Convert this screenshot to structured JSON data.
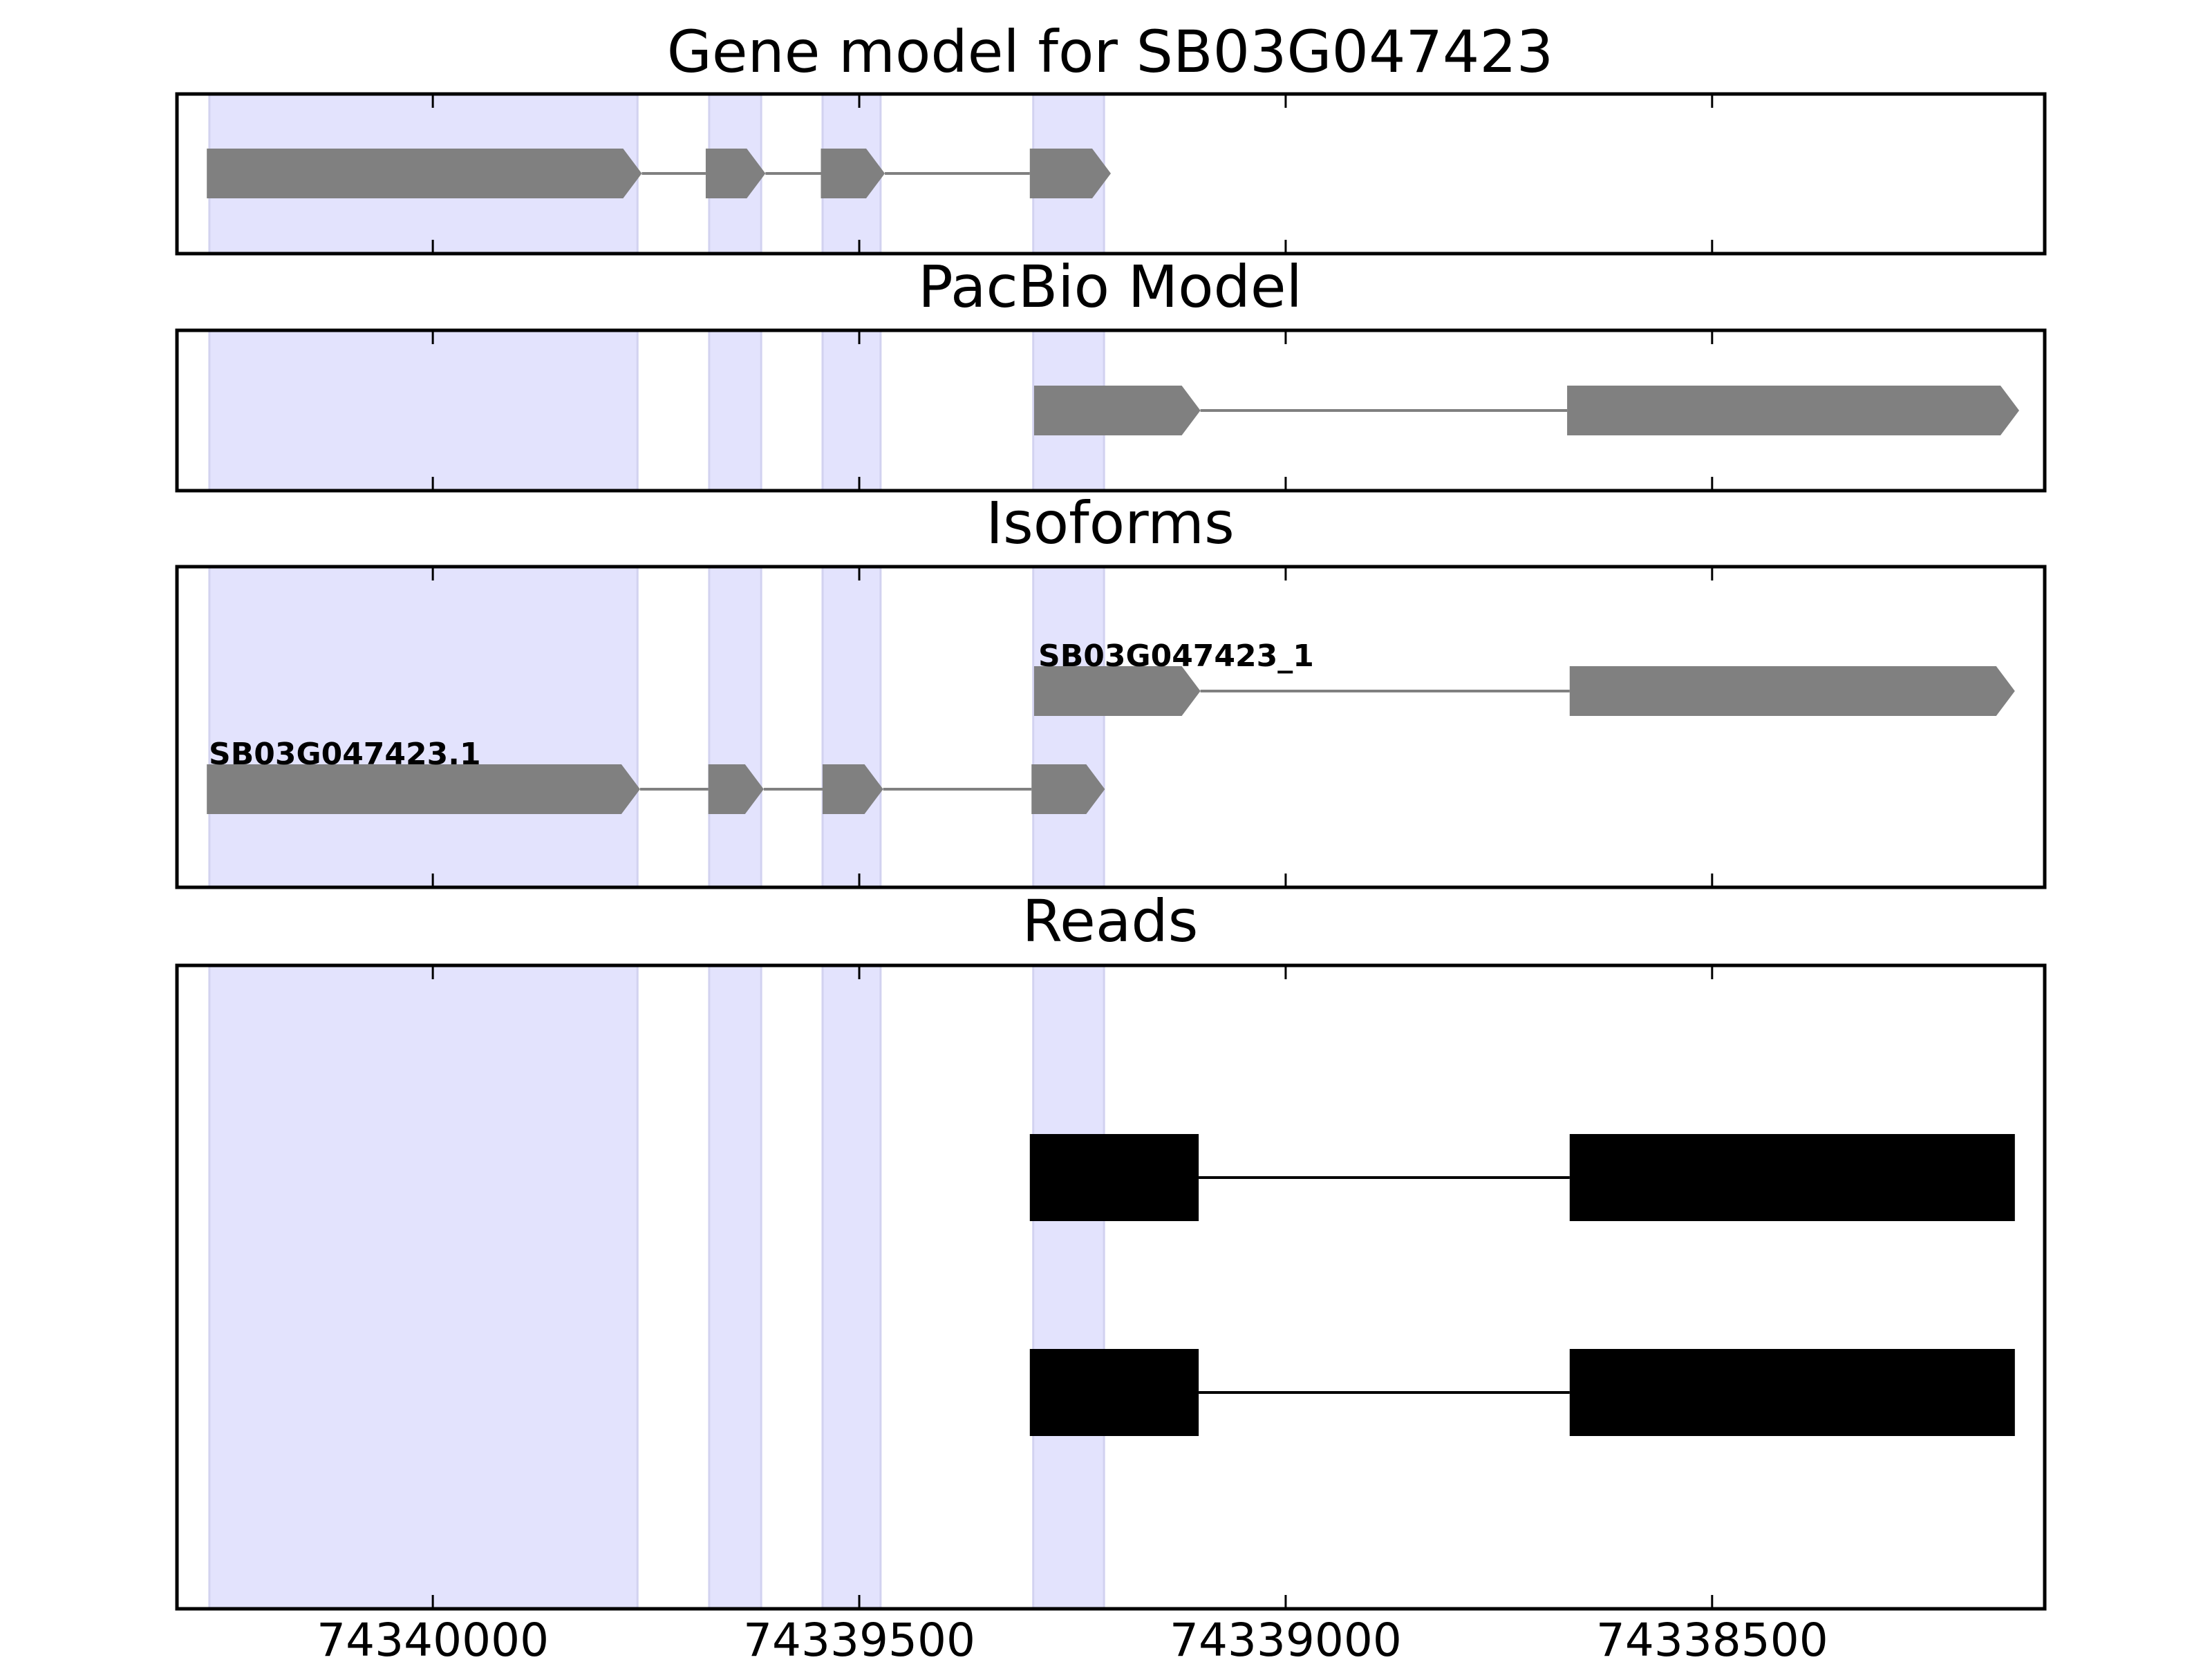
{
  "chart_data": {
    "type": "gene-track",
    "x_axis": {
      "ticks": [
        74340000,
        74339500,
        74339000,
        74338500
      ],
      "tick_labels": [
        "74340000",
        "74339500",
        "74339000",
        "74338500"
      ],
      "reversed": true,
      "range": [
        74340300,
        74338110
      ]
    },
    "highlight_regions": [
      [
        74340262,
        74339760
      ],
      [
        74339676,
        74339615
      ],
      [
        74339543,
        74339475
      ],
      [
        74339296,
        74339213
      ]
    ],
    "highlight_color": "#e3e3fd",
    "feature_color": "#808080",
    "read_color": "#000000",
    "panels": [
      {
        "title": "Gene model for SB03G047423",
        "rows": [
          {
            "exons": [
              [
                74340265,
                74339755
              ],
              [
                74339680,
                74339610
              ],
              [
                74339545,
                74339470
              ],
              [
                74339300,
                74339205
              ]
            ],
            "label": ""
          }
        ]
      },
      {
        "title": "PacBio Model",
        "rows": [
          {
            "exons": [
              [
                74339295,
                74339100
              ],
              [
                74338670,
                74338140
              ]
            ],
            "label": ""
          }
        ]
      },
      {
        "title": "Isoforms",
        "rows": [
          {
            "exons": [
              [
                74339295,
                74339100
              ],
              [
                74338667,
                74338145
              ]
            ],
            "label": "SB03G047423_1"
          },
          {
            "exons": [
              [
                74340265,
                74339757
              ],
              [
                74339677,
                74339612
              ],
              [
                74339543,
                74339472
              ],
              [
                74339298,
                74339212
              ]
            ],
            "label": "SB03G047423.1"
          }
        ]
      },
      {
        "title": "Reads",
        "rows": [
          {
            "exons": [
              [
                74339300,
                74339102
              ],
              [
                74338667,
                74338145
              ]
            ]
          },
          {
            "exons": [
              [
                74339300,
                74339102
              ],
              [
                74338667,
                74338145
              ]
            ]
          }
        ]
      }
    ]
  }
}
